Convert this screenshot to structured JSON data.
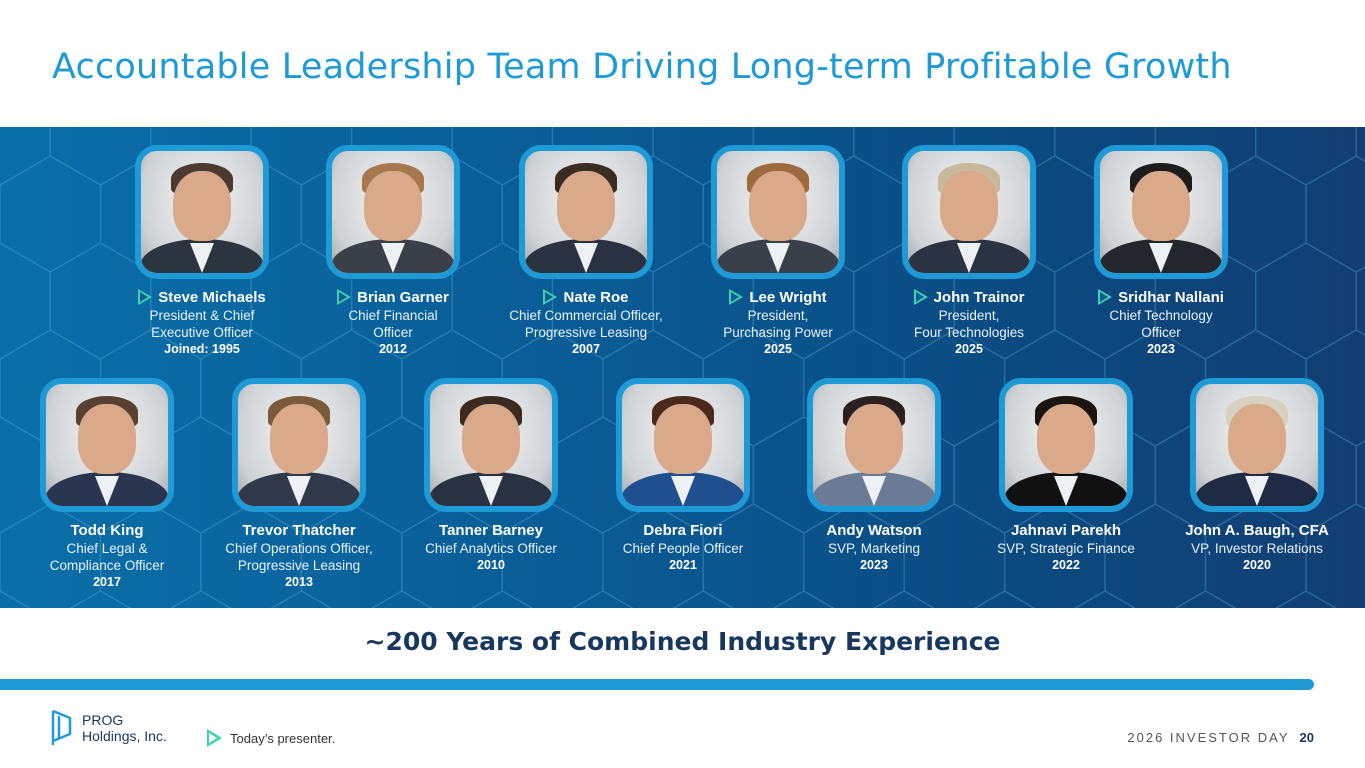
{
  "title": "Accountable Leadership Team Driving Long-term Profitable Growth",
  "row1": [
    {
      "name": "Steve Michaels",
      "role": "President & Chief\nExecutive Officer",
      "year": "Joined: 1995",
      "presenter": true
    },
    {
      "name": "Brian Garner",
      "role": "Chief Financial\nOfficer",
      "year": "2012",
      "presenter": true
    },
    {
      "name": "Nate Roe",
      "role": "Chief Commercial Officer,\nProgressive Leasing",
      "year": "2007",
      "presenter": true
    },
    {
      "name": "Lee Wright",
      "role": "President,\nPurchasing Power",
      "year": "2025",
      "presenter": true
    },
    {
      "name": "John Trainor",
      "role": "President,\nFour Technologies",
      "year": "2025",
      "presenter": true
    },
    {
      "name": "Sridhar Nallani",
      "role": "Chief Technology\nOfficer",
      "year": "2023",
      "presenter": true
    }
  ],
  "row2": [
    {
      "name": "Todd King",
      "role": "Chief Legal &\nCompliance Officer",
      "year": "2017",
      "presenter": false
    },
    {
      "name": "Trevor Thatcher",
      "role": "Chief Operations Officer,\nProgressive Leasing",
      "year": "2013",
      "presenter": false
    },
    {
      "name": "Tanner Barney",
      "role": "Chief Analytics Officer",
      "year": "2010",
      "presenter": false
    },
    {
      "name": "Debra Fiori",
      "role": "Chief People Officer",
      "year": "2021",
      "presenter": false
    },
    {
      "name": "Andy Watson",
      "role": "SVP, Marketing",
      "year": "2023",
      "presenter": false
    },
    {
      "name": "Jahnavi Parekh",
      "role": "SVP, Strategic Finance",
      "year": "2022",
      "presenter": false
    },
    {
      "name": "John A. Baugh, CFA",
      "role": "VP, Investor Relations",
      "year": "2020",
      "presenter": false
    }
  ],
  "tagline": "~200 Years of Combined Industry Experience",
  "logo": {
    "line1": "PROG",
    "line2": "Holdings, Inc."
  },
  "legend": "Today’s presenter.",
  "footer": {
    "event": "2026 INVESTOR DAY",
    "page": "20"
  },
  "colors": {
    "accent": "#1e9bd6",
    "navy": "#17375e",
    "presenter_marker": "#3ed2b2"
  }
}
